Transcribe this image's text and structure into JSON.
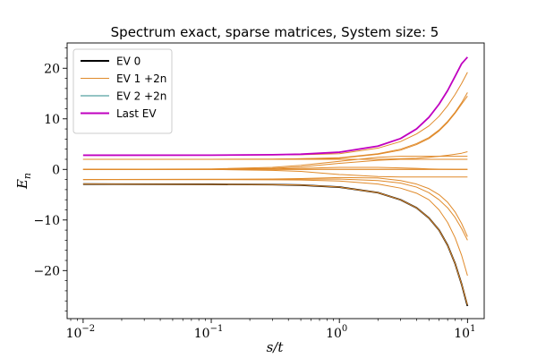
{
  "chart_data": {
    "type": "line",
    "title": "Spectrum exact, sparse matrices, System size: 5",
    "xlabel": "s/t",
    "ylabel": "E_n",
    "xscale": "log",
    "xlim": [
      0.0075,
      13.5
    ],
    "ylim": [
      -29.5,
      25.0
    ],
    "x_ticks": [
      {
        "value": 0.01,
        "base": "10",
        "exp": "−2"
      },
      {
        "value": 0.1,
        "base": "10",
        "exp": "−1"
      },
      {
        "value": 1,
        "base": "10",
        "exp": "0"
      },
      {
        "value": 10,
        "base": "10",
        "exp": "1"
      }
    ],
    "y_ticks": [
      {
        "value": 20,
        "label": "20"
      },
      {
        "value": 10,
        "label": "10"
      },
      {
        "value": 0,
        "label": "0"
      },
      {
        "value": -10,
        "label": "−10"
      },
      {
        "value": -20,
        "label": "−20"
      }
    ],
    "grid": false,
    "legend_position": "upper-left",
    "legend": [
      {
        "label": "EV 0",
        "color": "#000000",
        "width": 2
      },
      {
        "label": "EV 1 +2n",
        "color": "#e08a2a",
        "width": 1
      },
      {
        "label": "EV 2 +2n",
        "color": "#2a8a8a",
        "width": 1
      },
      {
        "label": "Last EV",
        "color": "#c000c0",
        "width": 2
      }
    ],
    "x": [
      0.01,
      0.1,
      0.3,
      0.5,
      1,
      2,
      3,
      4,
      5,
      6,
      7,
      8,
      9,
      10
    ],
    "series": [
      {
        "values": [
          -2.9,
          -2.95,
          -3.0,
          -3.1,
          -3.5,
          -4.6,
          -6.0,
          -7.6,
          -9.6,
          -12.0,
          -15.0,
          -18.6,
          -22.7,
          -27.0
        ],
        "color": "#000000",
        "width": 1.8
      },
      {
        "values": [
          -2.9,
          -2.95,
          -3.0,
          -3.1,
          -3.5,
          -4.6,
          -6.0,
          -7.6,
          -9.6,
          -12.0,
          -15.0,
          -18.6,
          -22.7,
          -26.8
        ],
        "color": "#e08a2a",
        "width": 1
      },
      {
        "values": [
          -2.0,
          -2.0,
          -2.05,
          -2.1,
          -2.3,
          -2.9,
          -3.7,
          -4.7,
          -6.0,
          -8.0,
          -10.5,
          -13.5,
          -17.0,
          -21.0
        ],
        "color": "#e08a2a",
        "width": 1
      },
      {
        "values": [
          -2.0,
          -2.0,
          -2.0,
          -1.95,
          -1.9,
          -2.2,
          -2.7,
          -3.5,
          -4.6,
          -6.0,
          -7.6,
          -9.5,
          -11.7,
          -14.0
        ],
        "color": "#e08a2a",
        "width": 1
      },
      {
        "values": [
          -2.0,
          -1.95,
          -1.9,
          -1.8,
          -1.6,
          -1.7,
          -2.2,
          -2.9,
          -3.8,
          -5.0,
          -6.5,
          -8.4,
          -10.7,
          -13.3
        ],
        "color": "#e08a2a",
        "width": 1
      },
      {
        "values": [
          0.0,
          0.0,
          -0.2,
          -0.4,
          -1.0,
          -1.4,
          -1.5,
          -1.5,
          -1.5,
          -1.5,
          -1.5,
          -1.5,
          -1.5,
          -1.5
        ],
        "color": "#e08a2a",
        "width": 1
      },
      {
        "values": [
          0.0,
          0.0,
          0.1,
          0.2,
          0.4,
          0.4,
          0.3,
          0.2,
          0.1,
          0.05,
          0.02,
          0.0,
          0.0,
          0.0
        ],
        "color": "#e08a2a",
        "width": 1
      },
      {
        "values": [
          0.0,
          0.0,
          0.0,
          0.0,
          0.0,
          0.0,
          0.0,
          0.0,
          0.0,
          0.0,
          0.0,
          0.0,
          0.0,
          0.0
        ],
        "color": "#e08a2a",
        "width": 1.2
      },
      {
        "values": [
          0.0,
          0.05,
          0.2,
          0.5,
          1.2,
          1.8,
          2.0,
          2.0,
          2.0,
          2.0,
          2.0,
          2.0,
          2.0,
          2.0
        ],
        "color": "#e08a2a",
        "width": 1
      },
      {
        "values": [
          0.0,
          0.1,
          0.4,
          0.8,
          1.6,
          2.4,
          2.6,
          2.6,
          2.6,
          2.6,
          2.6,
          2.6,
          2.6,
          2.6
        ],
        "color": "#e08a2a",
        "width": 1
      },
      {
        "values": [
          2.0,
          2.0,
          2.0,
          2.0,
          2.0,
          2.0,
          2.1,
          2.2,
          2.4,
          2.6,
          2.8,
          3.0,
          3.2,
          3.5
        ],
        "color": "#e08a2a",
        "width": 1
      },
      {
        "values": [
          2.0,
          2.0,
          2.0,
          2.1,
          2.2,
          3.0,
          3.8,
          4.9,
          6.1,
          7.6,
          9.3,
          11.1,
          12.9,
          14.5
        ],
        "color": "#e08a2a",
        "width": 1
      },
      {
        "values": [
          2.0,
          2.0,
          2.05,
          2.1,
          2.3,
          3.1,
          4.0,
          5.1,
          6.3,
          7.8,
          9.5,
          11.3,
          13.2,
          15.2
        ],
        "color": "#e08a2a",
        "width": 1
      },
      {
        "values": [
          2.8,
          2.82,
          2.85,
          2.9,
          3.1,
          4.2,
          5.5,
          7.0,
          8.6,
          10.5,
          12.6,
          14.8,
          17.0,
          19.2
        ],
        "color": "#e08a2a",
        "width": 1
      },
      {
        "values": [
          2.8,
          2.82,
          2.9,
          3.0,
          3.4,
          4.6,
          6.1,
          8.0,
          10.3,
          12.9,
          15.6,
          18.4,
          20.9,
          22.2
        ],
        "color": "#c000c0",
        "width": 1.8
      }
    ]
  }
}
